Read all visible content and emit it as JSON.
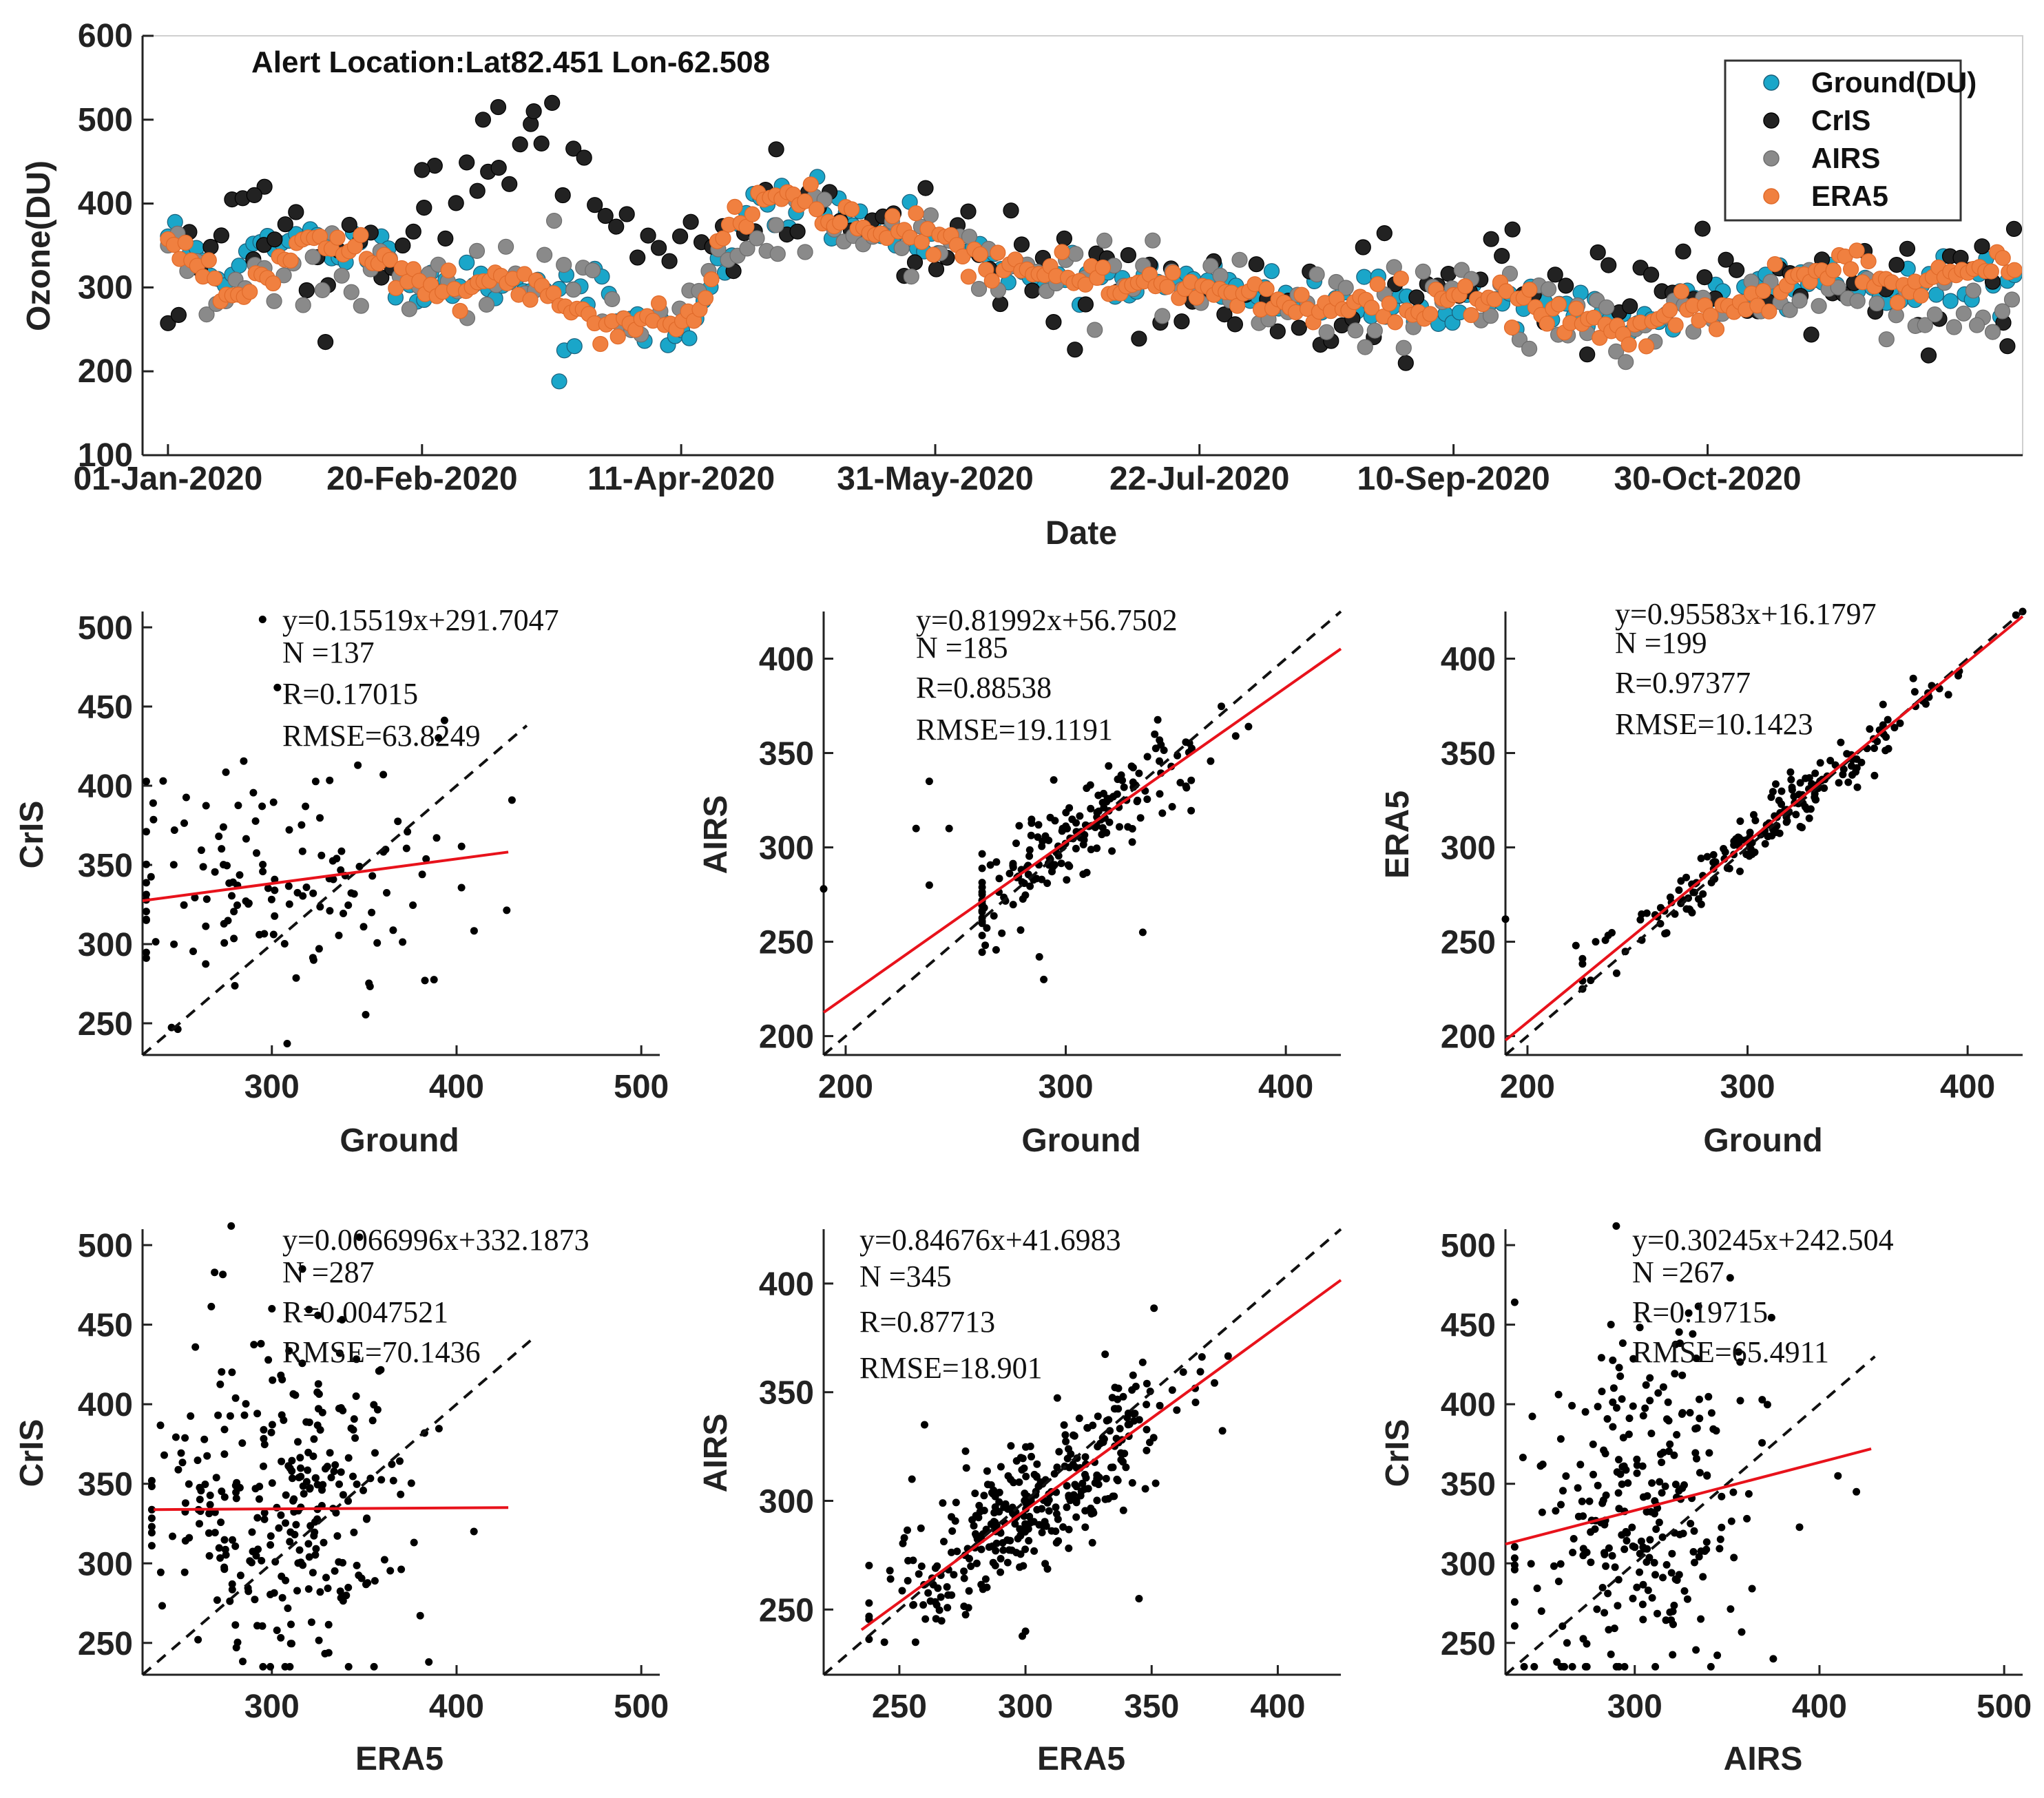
{
  "chart_data": [
    {
      "type": "scatter",
      "title": "Alert Location:Lat82.451 Lon-62.508",
      "xlabel": "Date",
      "ylabel": "Ozone(DU)",
      "ylim": [
        100,
        600
      ],
      "yticks": [
        100,
        200,
        300,
        400,
        500,
        600
      ],
      "xlim": [
        -5,
        365
      ],
      "xticks": [
        {
          "day": 0,
          "label": "01-Jan-2020"
        },
        {
          "day": 50,
          "label": "20-Feb-2020"
        },
        {
          "day": 101,
          "label": "11-Apr-2020"
        },
        {
          "day": 151,
          "label": "31-May-2020"
        },
        {
          "day": 203,
          "label": "22-Jul-2020"
        },
        {
          "day": 253,
          "label": "10-Sep-2020"
        },
        {
          "day": 303,
          "label": "30-Oct-2020"
        }
      ],
      "legend_position": "top-right",
      "series": [
        {
          "name": "Ground(DU)",
          "color": "#1aa6c9",
          "edge": "#1a5f7a",
          "anchors": [
            [
              0,
              365
            ],
            [
              10,
              320
            ],
            [
              25,
              355
            ],
            [
              40,
              345
            ],
            [
              50,
              305
            ],
            [
              70,
              310
            ],
            [
              80,
              300
            ],
            [
              88,
              275
            ],
            [
              95,
              245
            ],
            [
              103,
              265
            ],
            [
              110,
              330
            ],
            [
              115,
              400
            ],
            [
              120,
              395
            ],
            [
              125,
              410
            ],
            [
              130,
              385
            ],
            [
              150,
              355
            ],
            [
              165,
              325
            ],
            [
              190,
              310
            ],
            [
              210,
              295
            ],
            [
              230,
              280
            ],
            [
              250,
              280
            ],
            [
              270,
              285
            ],
            [
              285,
              260
            ],
            [
              300,
              275
            ],
            [
              320,
              310
            ],
            [
              340,
              300
            ],
            [
              360,
              300
            ]
          ],
          "noise": 15,
          "seed": 11,
          "step": 1.4,
          "ranges": [
            [
              0,
              94
            ],
            [
              97,
              152
            ],
            [
              157,
              247
            ],
            [
              250,
              364
            ]
          ],
          "extra": [
            [
              77,
              188
            ],
            [
              78,
              225
            ],
            [
              80,
              230
            ]
          ]
        },
        {
          "name": "CrIS",
          "color": "#222222",
          "edge": "#000000",
          "anchors": [
            [
              0,
              265
            ],
            [
              8,
              330
            ],
            [
              15,
              400
            ],
            [
              20,
              330
            ],
            [
              25,
              360
            ],
            [
              30,
              345
            ],
            [
              40,
              360
            ],
            [
              45,
              300
            ],
            [
              50,
              400
            ],
            [
              60,
              430
            ],
            [
              65,
              400
            ],
            [
              70,
              450
            ],
            [
              75,
              470
            ],
            [
              80,
              420
            ],
            [
              85,
              390
            ],
            [
              90,
              385
            ],
            [
              100,
              320
            ],
            [
              110,
              360
            ],
            [
              120,
              390
            ],
            [
              130,
              400
            ],
            [
              140,
              370
            ],
            [
              150,
              370
            ],
            [
              160,
              340
            ],
            [
              170,
              320
            ],
            [
              180,
              305
            ],
            [
              190,
              300
            ],
            [
              210,
              290
            ],
            [
              220,
              300
            ],
            [
              230,
              285
            ],
            [
              240,
              300
            ],
            [
              260,
              295
            ],
            [
              270,
              295
            ],
            [
              280,
              300
            ],
            [
              290,
              300
            ],
            [
              300,
              310
            ],
            [
              310,
              300
            ],
            [
              320,
              300
            ],
            [
              340,
              295
            ],
            [
              360,
              320
            ]
          ],
          "noise": 30,
          "seed": 22,
          "step": 2.1,
          "ranges": [
            [
              0,
              364
            ]
          ],
          "extra": [
            [
              62,
              500
            ],
            [
              65,
              515
            ],
            [
              72,
              510
            ],
            [
              19,
              420
            ],
            [
              17,
              410
            ],
            [
              31,
              235
            ],
            [
              50,
              440
            ],
            [
              302,
              370
            ],
            [
              362,
              230
            ]
          ]
        },
        {
          "name": "AIRS",
          "color": "#8a8a8a",
          "edge": "#6e6e6e",
          "anchors": [
            [
              0,
              355
            ],
            [
              10,
              285
            ],
            [
              20,
              300
            ],
            [
              30,
              330
            ],
            [
              40,
              300
            ],
            [
              55,
              300
            ],
            [
              65,
              305
            ],
            [
              75,
              340
            ],
            [
              80,
              300
            ],
            [
              90,
              265
            ],
            [
              100,
              250
            ],
            [
              110,
              320
            ],
            [
              115,
              360
            ],
            [
              125,
              385
            ],
            [
              135,
              370
            ],
            [
              150,
              360
            ],
            [
              160,
              335
            ],
            [
              175,
              320
            ],
            [
              200,
              300
            ],
            [
              220,
              280
            ],
            [
              240,
              265
            ],
            [
              255,
              290
            ],
            [
              270,
              270
            ],
            [
              285,
              250
            ],
            [
              300,
              265
            ],
            [
              320,
              300
            ],
            [
              340,
              290
            ],
            [
              360,
              270
            ]
          ],
          "noise": 22,
          "seed": 33,
          "step": 1.9,
          "ranges": [
            [
              0,
              364
            ]
          ],
          "extra": [
            [
              120,
              340
            ],
            [
              356,
              255
            ]
          ]
        },
        {
          "name": "ERA5",
          "color": "#f08040",
          "edge": "#e06a2a",
          "anchors": [
            [
              0,
              360
            ],
            [
              10,
              290
            ],
            [
              20,
              310
            ],
            [
              25,
              345
            ],
            [
              35,
              350
            ],
            [
              40,
              345
            ],
            [
              45,
              310
            ],
            [
              50,
              295
            ],
            [
              60,
              305
            ],
            [
              70,
              310
            ],
            [
              75,
              290
            ],
            [
              80,
              270
            ],
            [
              90,
              250
            ],
            [
              100,
              265
            ],
            [
              105,
              280
            ],
            [
              110,
              380
            ],
            [
              118,
              400
            ],
            [
              125,
              410
            ],
            [
              130,
              385
            ],
            [
              140,
              370
            ],
            [
              150,
              360
            ],
            [
              160,
              325
            ],
            [
              170,
              320
            ],
            [
              185,
              310
            ],
            [
              200,
              300
            ],
            [
              210,
              290
            ],
            [
              230,
              280
            ],
            [
              240,
              280
            ],
            [
              250,
              285
            ],
            [
              260,
              295
            ],
            [
              270,
              280
            ],
            [
              280,
              265
            ],
            [
              285,
              245
            ],
            [
              295,
              265
            ],
            [
              310,
              275
            ],
            [
              320,
              310
            ],
            [
              330,
              330
            ],
            [
              340,
              300
            ],
            [
              350,
              305
            ],
            [
              360,
              330
            ]
          ],
          "noise": 12,
          "seed": 44,
          "step": 1.15,
          "ranges": [
            [
              0,
              364
            ]
          ],
          "extra": []
        }
      ]
    },
    {
      "type": "scatter",
      "xlabel": "Ground",
      "ylabel": "CrIS",
      "xlim": [
        230,
        510
      ],
      "ylim": [
        230,
        510
      ],
      "xticks": [
        300,
        400,
        500
      ],
      "yticks": [
        250,
        300,
        350,
        400,
        450,
        500
      ],
      "fit": {
        "slope": 0.15519,
        "intercept": 291.7047,
        "x_range": [
          230,
          428
        ]
      },
      "identity": [
        230,
        438
      ],
      "stats": [
        "y=0.15519x+291.7047",
        "N =137",
        "R=0.17015",
        "RMSE=63.8249"
      ],
      "cloud": {
        "n": 137,
        "mean": [
          305,
          335
        ],
        "slope": 0.15519,
        "intercept": 291.7047,
        "sx": 52,
        "sy": 38,
        "xr": [
          232,
          430
        ],
        "yr": [
          235,
          470
        ],
        "seed": 101
      },
      "extra": [
        [
          295,
          505
        ],
        [
          303,
          462
        ]
      ]
    },
    {
      "type": "scatter",
      "xlabel": "Ground",
      "ylabel": "AIRS",
      "xlim": [
        190,
        425
      ],
      "ylim": [
        190,
        425
      ],
      "xticks": [
        200,
        300,
        400
      ],
      "yticks": [
        200,
        250,
        300,
        350,
        400
      ],
      "fit": {
        "slope": 0.81992,
        "intercept": 56.7502,
        "x_range": [
          190,
          425
        ]
      },
      "identity": [
        190,
        425
      ],
      "stats": [
        "y=0.81992x+56.7502",
        "N =185",
        "R=0.88538",
        "RMSE=19.1191"
      ],
      "cloud": {
        "n": 185,
        "mean": [
          305,
          307
        ],
        "slope": 0.81992,
        "intercept": 56.7502,
        "sx": 32,
        "sy": 13,
        "xr": [
          262,
          415
        ],
        "yr": [
          230,
          420
        ],
        "seed": 202
      },
      "extra": [
        [
          238,
          335
        ],
        [
          232,
          310
        ],
        [
          238,
          280
        ],
        [
          247,
          310
        ],
        [
          190,
          278
        ],
        [
          290,
          230
        ],
        [
          335,
          255
        ],
        [
          288,
          242
        ]
      ]
    },
    {
      "type": "scatter",
      "xlabel": "Ground",
      "ylabel": "ERA5",
      "xlim": [
        190,
        425
      ],
      "ylim": [
        190,
        425
      ],
      "xticks": [
        200,
        300,
        400
      ],
      "yticks": [
        200,
        250,
        300,
        350,
        400
      ],
      "fit": {
        "slope": 0.95583,
        "intercept": 16.1797,
        "x_range": [
          190,
          425
        ]
      },
      "identity": [
        190,
        425
      ],
      "stats": [
        "y=0.95583x+16.1797",
        "N =199",
        "R=0.97377",
        "RMSE=10.1423"
      ],
      "cloud": {
        "n": 199,
        "mean": [
          310,
          312
        ],
        "slope": 0.95583,
        "intercept": 16.1797,
        "sx": 40,
        "sy": 7,
        "xr": [
          225,
          425
        ],
        "yr": [
          225,
          425
        ],
        "seed": 303
      },
      "extra": [
        [
          190,
          262
        ],
        [
          222,
          248
        ],
        [
          231,
          250
        ]
      ]
    },
    {
      "type": "scatter",
      "xlabel": "ERA5",
      "ylabel": "CrIS",
      "xlim": [
        230,
        510
      ],
      "ylim": [
        230,
        510
      ],
      "xticks": [
        300,
        400,
        500
      ],
      "yticks": [
        250,
        300,
        350,
        400,
        450,
        500
      ],
      "fit": {
        "slope": 0.0066996,
        "intercept": 332.1873,
        "x_range": [
          236,
          428
        ]
      },
      "identity": [
        230,
        440
      ],
      "stats": [
        "y=0.0066996x+332.1873",
        "N =287",
        "R=0.0047521",
        "RMSE=70.1436"
      ],
      "cloud": {
        "n": 287,
        "mean": [
          305,
          330
        ],
        "slope": 0.0066996,
        "intercept": 332.1873,
        "sx": 38,
        "sy": 52,
        "xr": [
          235,
          430
        ],
        "yr": [
          235,
          505
        ],
        "seed": 404
      },
      "extra": [
        [
          278,
          512
        ],
        [
          300,
          460
        ],
        [
          385,
          238
        ]
      ]
    },
    {
      "type": "scatter",
      "xlabel": "ERA5",
      "ylabel": "AIRS",
      "xlim": [
        220,
        425
      ],
      "ylim": [
        220,
        425
      ],
      "xticks": [
        250,
        300,
        350,
        400
      ],
      "yticks": [
        250,
        300,
        350,
        400
      ],
      "fit": {
        "slope": 0.84676,
        "intercept": 41.6983,
        "x_range": [
          235,
          425
        ]
      },
      "identity": [
        220,
        425
      ],
      "stats": [
        "y=0.84676x+41.6983",
        "N =345",
        "R=0.87713",
        "RMSE=18.901"
      ],
      "cloud": {
        "n": 345,
        "mean": [
          305,
          300
        ],
        "slope": 0.84676,
        "intercept": 41.6983,
        "sx": 30,
        "sy": 16,
        "xr": [
          238,
          422
        ],
        "yr": [
          235,
          420
        ],
        "seed": 505
      },
      "extra": [
        [
          255,
          310
        ],
        [
          260,
          335
        ],
        [
          345,
          255
        ],
        [
          300,
          240
        ]
      ]
    },
    {
      "type": "scatter",
      "xlabel": "AIRS",
      "ylabel": "CrIS",
      "xlim": [
        230,
        510
      ],
      "ylim": [
        230,
        510
      ],
      "xticks": [
        300,
        400,
        500
      ],
      "yticks": [
        250,
        300,
        350,
        400,
        450,
        500
      ],
      "fit": {
        "slope": 0.30245,
        "intercept": 242.504,
        "x_range": [
          230,
          428
        ]
      },
      "identity": [
        230,
        430
      ],
      "stats": [
        "y=0.30245x+242.504",
        "N =267",
        "R=0.19715",
        "RMSE=65.4911"
      ],
      "cloud": {
        "n": 267,
        "mean": [
          300,
          333
        ],
        "slope": 0.30245,
        "intercept": 242.504,
        "sx": 30,
        "sy": 52,
        "xr": [
          235,
          425
        ],
        "yr": [
          235,
          500
        ],
        "seed": 606
      },
      "extra": [
        [
          290,
          512
        ],
        [
          375,
          240
        ],
        [
          420,
          345
        ],
        [
          410,
          355
        ]
      ]
    }
  ]
}
